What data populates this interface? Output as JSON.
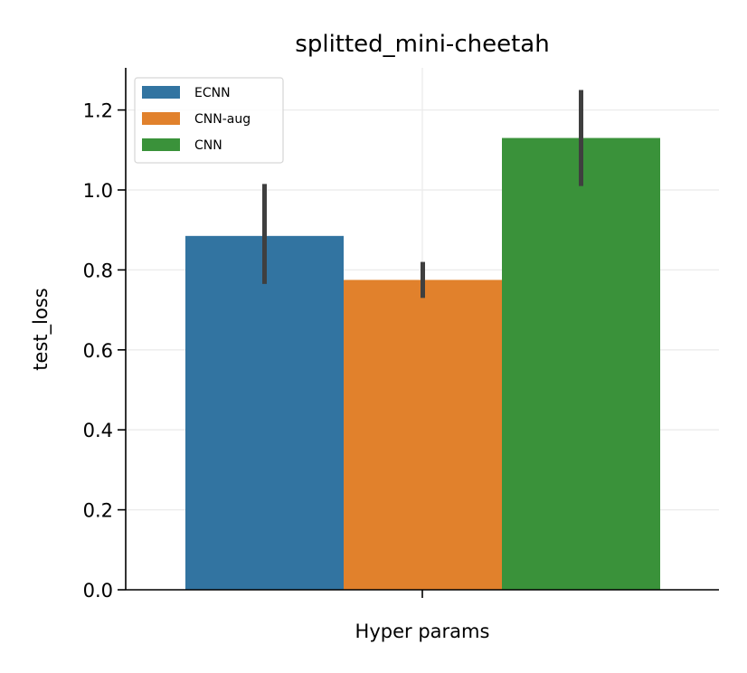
{
  "chart_data": {
    "type": "bar",
    "title": "splitted_mini-cheetah",
    "xlabel": "Hyper params",
    "ylabel": "test_loss",
    "ylim": [
      0,
      1.3
    ],
    "yticks": [
      "0.0",
      "0.2",
      "0.4",
      "0.6",
      "0.8",
      "1.0",
      "1.2"
    ],
    "grid": true,
    "legend_position": "upper-left",
    "series": [
      {
        "name": "ECNN",
        "value": 0.885,
        "err_low": 0.765,
        "err_high": 1.015,
        "color": "#3274a1"
      },
      {
        "name": "CNN-aug",
        "value": 0.775,
        "err_low": 0.73,
        "err_high": 0.82,
        "color": "#e1812c"
      },
      {
        "name": "CNN",
        "value": 1.13,
        "err_low": 1.01,
        "err_high": 1.25,
        "color": "#3a923a"
      }
    ],
    "error_bar_color": "#3f3f3f"
  }
}
